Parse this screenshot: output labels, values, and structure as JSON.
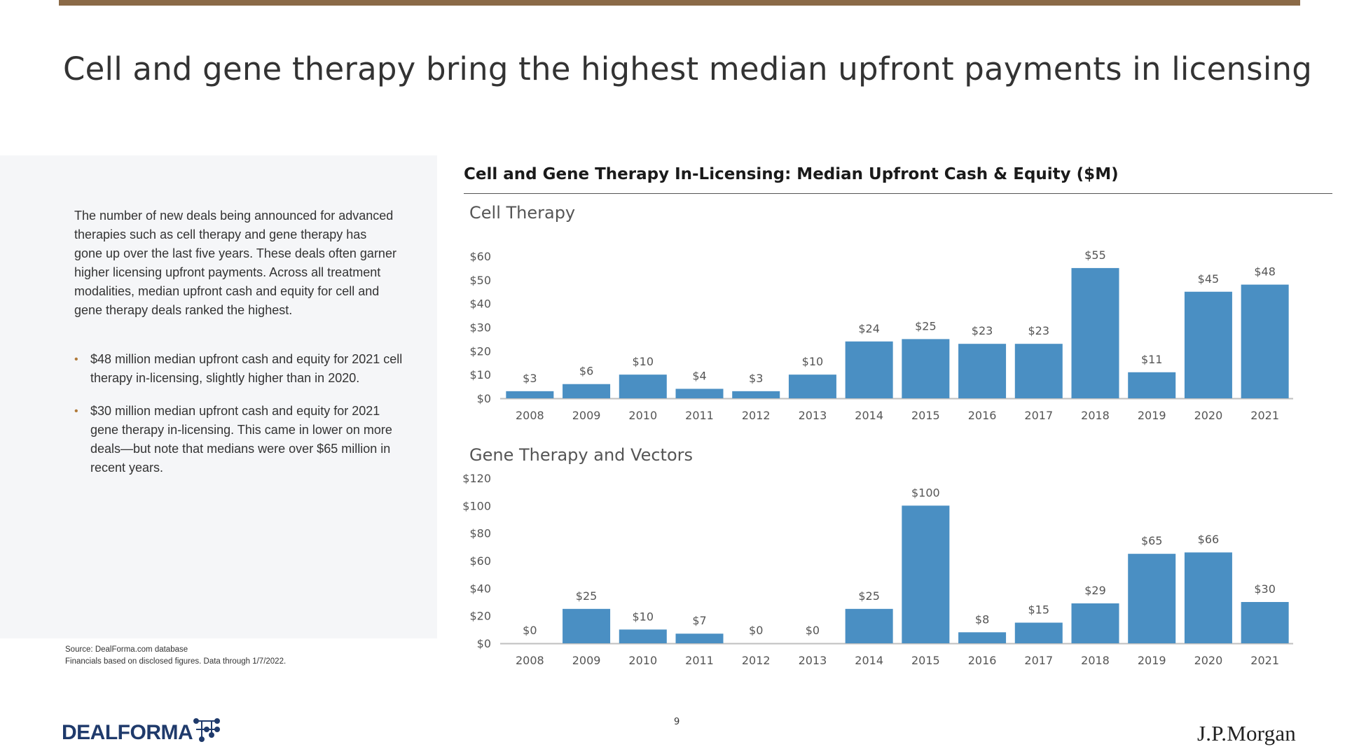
{
  "title": "Cell and gene therapy bring the highest median upfront payments in licensing",
  "intro": "The number of new deals being announced for advanced therapies such as cell therapy and gene therapy has gone up over the last five years. These deals often garner higher licensing upfront payments. Across all treatment modalities, median upfront cash and equity for cell and gene therapy deals ranked the highest.",
  "bullets": [
    "$48 million median upfront cash and equity for 2021 cell therapy in-licensing, slightly higher than in 2020.",
    "$30 million median upfront cash and equity for 2021 gene therapy in-licensing. This came in lower on more deals—but note that medians were over $65 million in recent years."
  ],
  "source": {
    "line1": "Source: DealForma.com database",
    "line2": "Financials based on disclosed figures. Data through 1/7/2022."
  },
  "chart_heading": "Cell and Gene Therapy In-Licensing: Median Upfront Cash & Equity ($M)",
  "page_number": "9",
  "logos": {
    "dealforma": "DEALFORMA",
    "jpmorgan": "J.P.Morgan"
  },
  "colors": {
    "bar": "#4a8fc3",
    "accent_rule": "#8b6a47",
    "panel": "#f5f6f8"
  },
  "chart_data": [
    {
      "type": "bar",
      "title": "Cell Therapy",
      "categories": [
        "2008",
        "2009",
        "2010",
        "2011",
        "2012",
        "2013",
        "2014",
        "2015",
        "2016",
        "2017",
        "2018",
        "2019",
        "2020",
        "2021"
      ],
      "values": [
        3,
        6,
        10,
        4,
        3,
        10,
        24,
        25,
        23,
        23,
        55,
        11,
        45,
        48
      ],
      "labels": [
        "$3",
        "$6",
        "$10",
        "$4",
        "$3",
        "$10",
        "$24",
        "$25",
        "$23",
        "$23",
        "$55",
        "$11",
        "$45",
        "$48"
      ],
      "yticks": [
        "$0",
        "$10",
        "$20",
        "$30",
        "$40",
        "$50",
        "$60"
      ],
      "ylim": [
        0,
        60
      ],
      "grid": false
    },
    {
      "type": "bar",
      "title": "Gene Therapy and Vectors",
      "categories": [
        "2008",
        "2009",
        "2010",
        "2011",
        "2012",
        "2013",
        "2014",
        "2015",
        "2016",
        "2017",
        "2018",
        "2019",
        "2020",
        "2021"
      ],
      "values": [
        0,
        25,
        10,
        7,
        0,
        0,
        25,
        100,
        8,
        15,
        29,
        65,
        66,
        30
      ],
      "labels": [
        "$0",
        "$25",
        "$10",
        "$7",
        "$0",
        "$0",
        "$25",
        "$100",
        "$8",
        "$15",
        "$29",
        "$65",
        "$66",
        "$30"
      ],
      "yticks": [
        "$0",
        "$20",
        "$40",
        "$60",
        "$80",
        "$100",
        "$120"
      ],
      "ylim": [
        0,
        120
      ],
      "grid": false
    }
  ]
}
